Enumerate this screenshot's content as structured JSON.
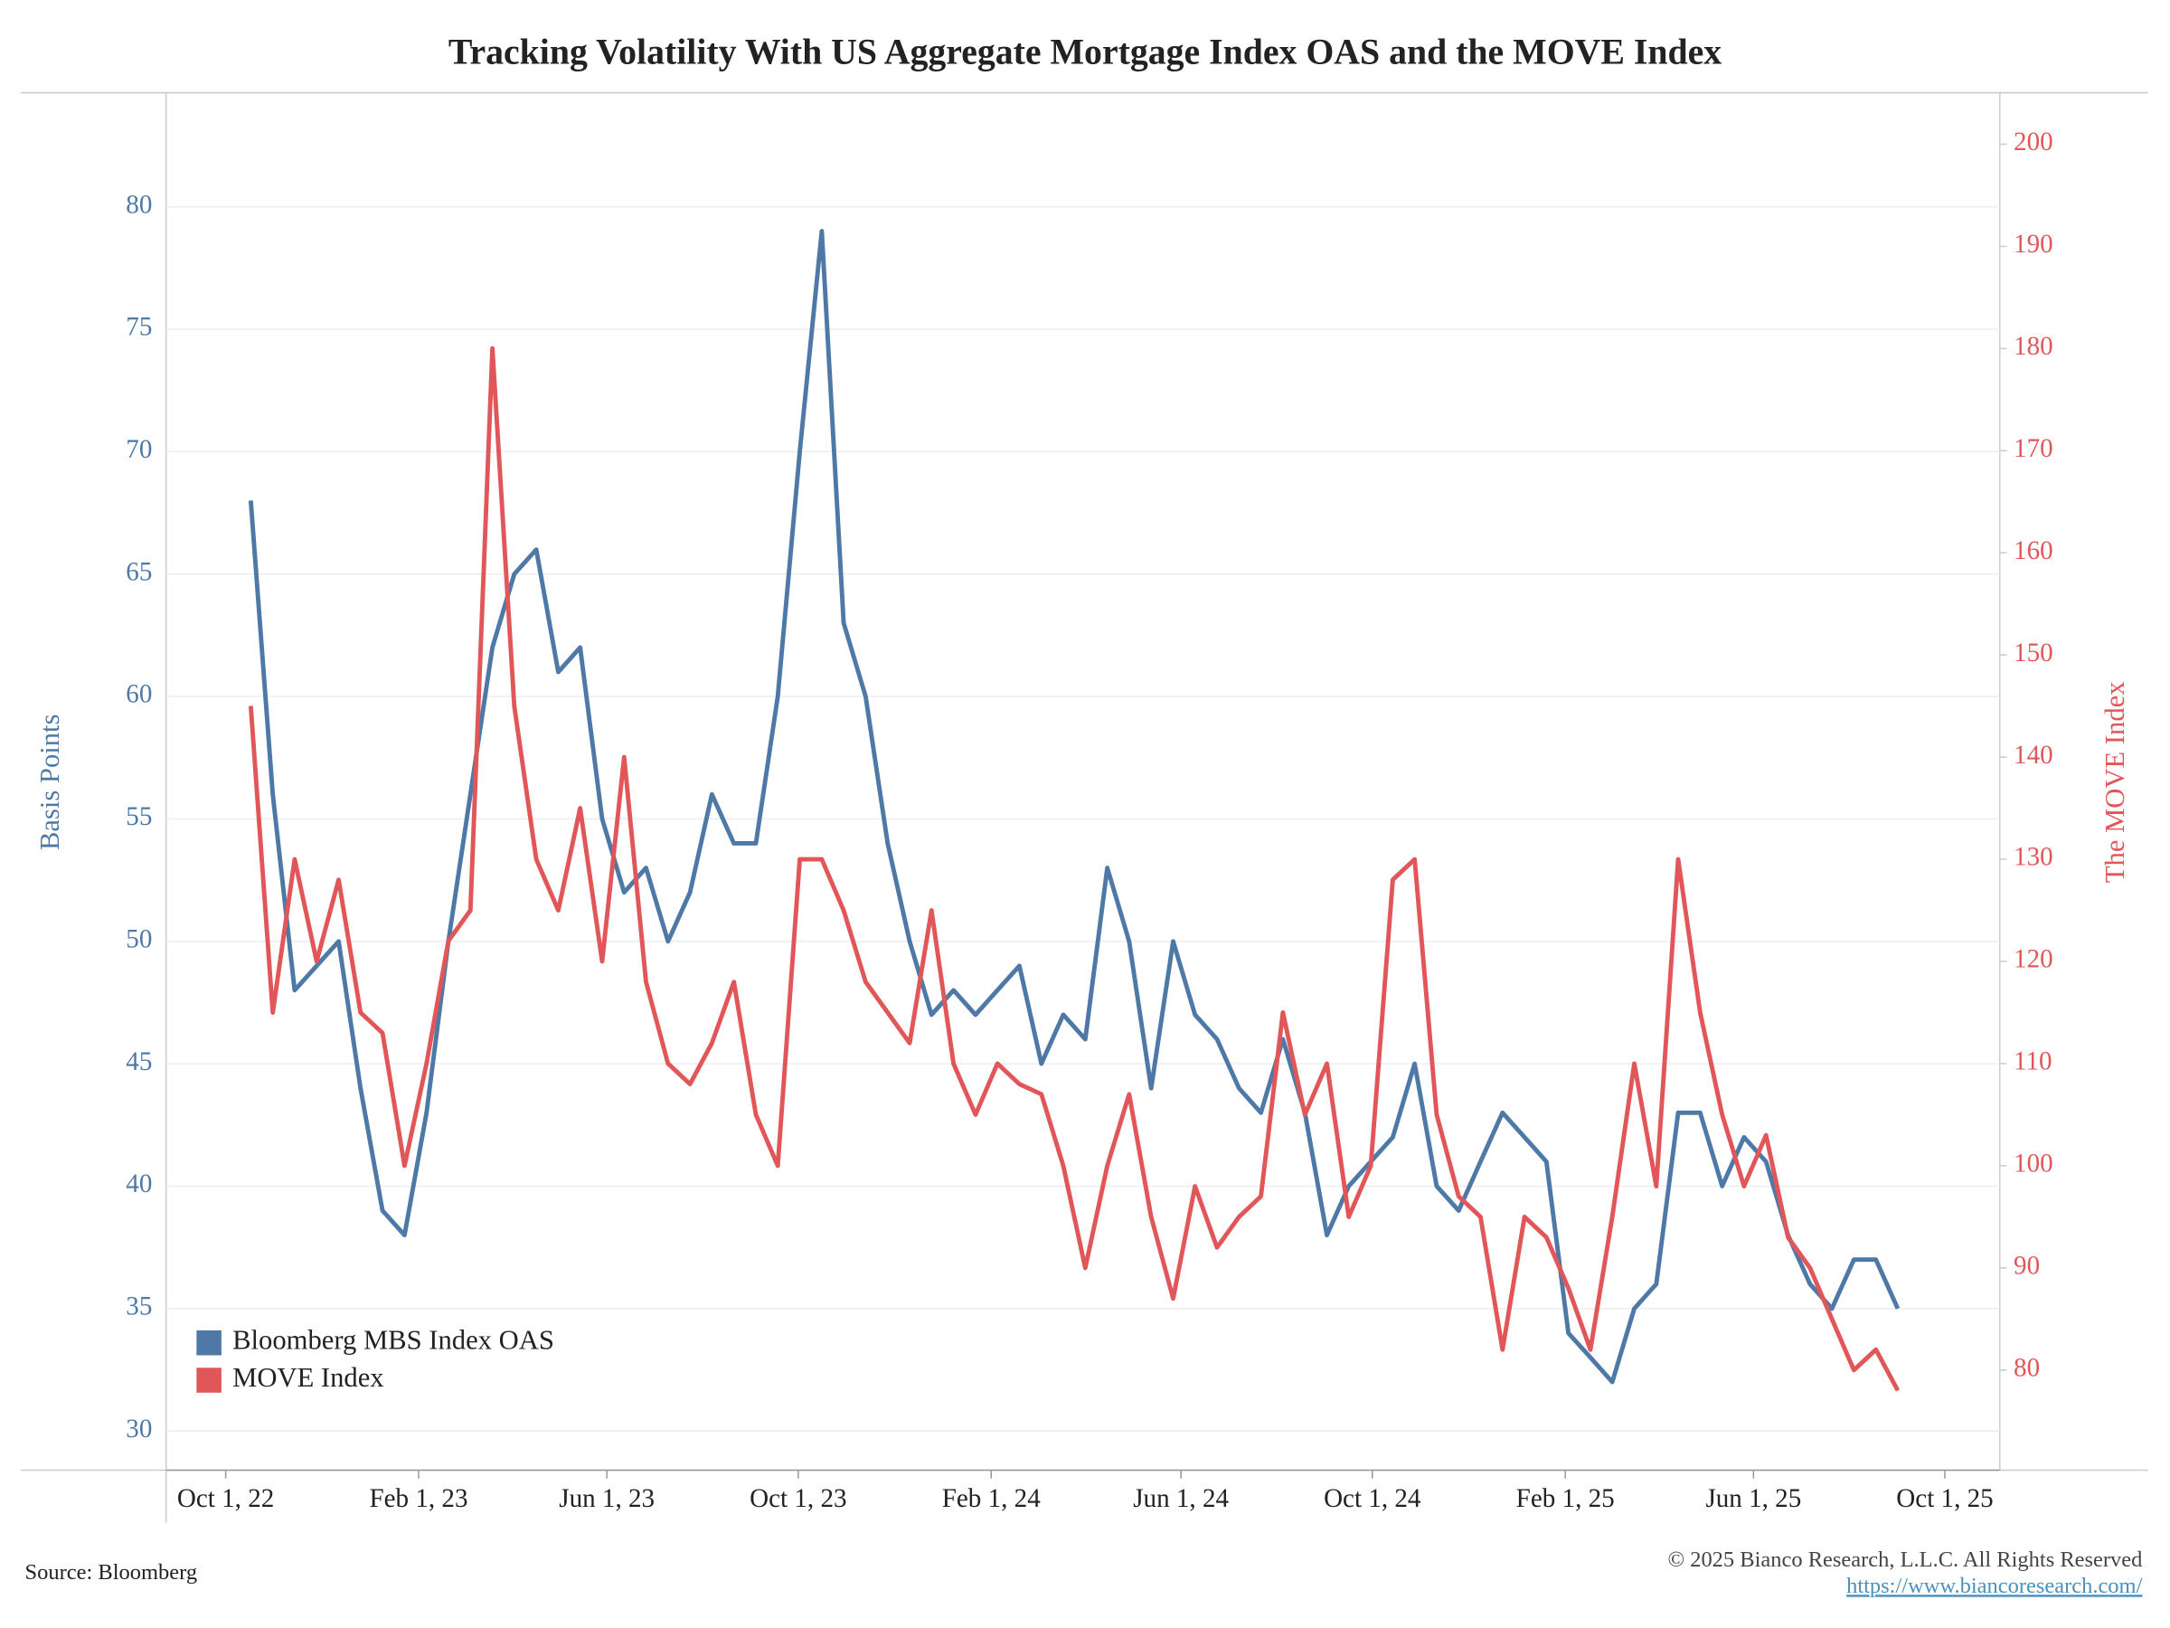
{
  "chart_data": {
    "type": "line",
    "title": "Tracking Volatility With US Aggregate Mortgage Index OAS and the MOVE Index",
    "y_label": "Basis Points",
    "y2_label": "The MOVE Index",
    "source": "Source: Bloomberg",
    "copyright": "© 2025 Bianco Research, L.L.C. All Rights Reserved",
    "url": "https://www.biancoresearch.com/",
    "legend": "lower left",
    "grid": true,
    "x": [
      "2022-10-17",
      "2022-10-31",
      "2022-11-14",
      "2022-11-28",
      "2022-12-12",
      "2022-12-26",
      "2023-01-09",
      "2023-01-23",
      "2023-02-06",
      "2023-02-20",
      "2023-03-06",
      "2023-03-20",
      "2023-04-03",
      "2023-04-17",
      "2023-05-01",
      "2023-05-15",
      "2023-05-29",
      "2023-06-12",
      "2023-06-26",
      "2023-07-10",
      "2023-07-24",
      "2023-08-07",
      "2023-08-21",
      "2023-09-04",
      "2023-09-18",
      "2023-10-02",
      "2023-10-16",
      "2023-10-30",
      "2023-11-13",
      "2023-11-27",
      "2023-12-11",
      "2023-12-25",
      "2024-01-08",
      "2024-01-22",
      "2024-02-05",
      "2024-02-19",
      "2024-03-04",
      "2024-03-18",
      "2024-04-01",
      "2024-04-15",
      "2024-04-29",
      "2024-05-13",
      "2024-05-27",
      "2024-06-10",
      "2024-06-24",
      "2024-07-08",
      "2024-07-22",
      "2024-08-05",
      "2024-08-19",
      "2024-09-02",
      "2024-09-16",
      "2024-09-30",
      "2024-10-14",
      "2024-10-28",
      "2024-11-11",
      "2024-11-25",
      "2024-12-09",
      "2024-12-23",
      "2025-01-06",
      "2025-01-20",
      "2025-02-03",
      "2025-02-17",
      "2025-03-03",
      "2025-03-17",
      "2025-03-31",
      "2025-04-14",
      "2025-04-28",
      "2025-05-12",
      "2025-05-26",
      "2025-06-09",
      "2025-06-23",
      "2025-07-07",
      "2025-07-21",
      "2025-08-04",
      "2025-08-18",
      "2025-09-01"
    ],
    "xlim": [
      "2022-08-24",
      "2025-11-05"
    ],
    "xticks": [
      {
        "value": "2022-10-01",
        "label": "Oct 1, 22"
      },
      {
        "value": "2023-02-01",
        "label": "Feb 1, 23"
      },
      {
        "value": "2023-06-01",
        "label": "Jun 1, 23"
      },
      {
        "value": "2023-10-01",
        "label": "Oct 1, 23"
      },
      {
        "value": "2024-02-01",
        "label": "Feb 1, 24"
      },
      {
        "value": "2024-06-01",
        "label": "Jun 1, 24"
      },
      {
        "value": "2024-10-01",
        "label": "Oct 1, 24"
      },
      {
        "value": "2025-02-01",
        "label": "Feb 1, 25"
      },
      {
        "value": "2025-06-01",
        "label": "Jun 1, 25"
      },
      {
        "value": "2025-10-01",
        "label": "Oct 1, 25"
      }
    ],
    "ylim": [
      28.4,
      84.6
    ],
    "yticks": [
      30,
      35,
      40,
      45,
      50,
      55,
      60,
      65,
      70,
      75,
      80
    ],
    "y2lim": [
      70.2,
      204.9
    ],
    "y2ticks": [
      80,
      90,
      100,
      110,
      120,
      130,
      140,
      150,
      160,
      170,
      180,
      190,
      200
    ],
    "series": [
      {
        "name": "Bloomberg MBS Index OAS",
        "color": "#4e79a7",
        "values": [
          68,
          56,
          48,
          49,
          50,
          44,
          39,
          38,
          43,
          50,
          56,
          62,
          65,
          66,
          61,
          62,
          55,
          52,
          53,
          50,
          52,
          56,
          54,
          54,
          60,
          70,
          79,
          63,
          60,
          54,
          50,
          47,
          48,
          47,
          48,
          49,
          45,
          47,
          46,
          53,
          50,
          44,
          50,
          47,
          46,
          44,
          43,
          46,
          43,
          38,
          40,
          41,
          42,
          45,
          40,
          39,
          41,
          43,
          42,
          41,
          34,
          33,
          32,
          35,
          36,
          43,
          43,
          40,
          42,
          41,
          38,
          36,
          35,
          37,
          37,
          35
        ]
      },
      {
        "name": "MOVE Index",
        "color": "#e15759",
        "axis": "y2",
        "values": [
          145,
          115,
          130,
          120,
          128,
          115,
          113,
          100,
          110,
          122,
          125,
          180,
          145,
          130,
          125,
          135,
          120,
          140,
          118,
          110,
          108,
          112,
          118,
          105,
          100,
          130,
          130,
          125,
          118,
          115,
          112,
          125,
          110,
          105,
          110,
          108,
          107,
          100,
          90,
          100,
          107,
          95,
          87,
          98,
          92,
          95,
          97,
          115,
          105,
          110,
          95,
          100,
          128,
          130,
          105,
          97,
          95,
          82,
          95,
          93,
          88,
          82,
          95,
          110,
          98,
          130,
          115,
          105,
          98,
          103,
          93,
          90,
          85,
          80,
          82,
          78
        ]
      }
    ]
  }
}
